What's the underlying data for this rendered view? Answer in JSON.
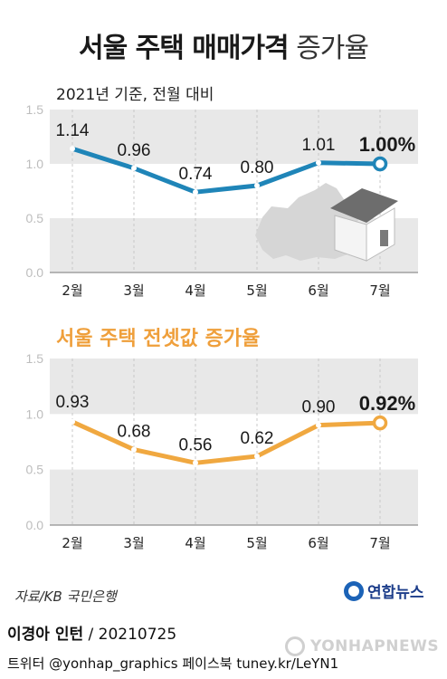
{
  "title": {
    "bold": "서울 주택 매매가격",
    "light": " 증가율"
  },
  "subtitle": "2021년 기준, 전월 대비",
  "chart2_title": "서울 주택 전셋값 증가율",
  "source": "자료/KB 국민은행",
  "logo": "연합뉴스",
  "footer": {
    "author": "이경아 인턴",
    "date": " / 20210725",
    "social": "트위터 @yonhap_graphics  페이스북 tuney.kr/LeYN1"
  },
  "watermark": "YONHAPNEWS",
  "colors": {
    "series1": "#1f85b8",
    "series2": "#f0a840",
    "band": "#e8e8e8"
  },
  "chart_data": [
    {
      "type": "line",
      "title": "서울 주택 매매가격 증가율",
      "subtitle": "2021년 기준, 전월 대비",
      "categories": [
        "2월",
        "3월",
        "4월",
        "5월",
        "6월",
        "7월"
      ],
      "values": [
        1.14,
        0.96,
        0.74,
        0.8,
        1.01,
        1.0
      ],
      "labels": [
        "1.14",
        "0.96",
        "0.74",
        "0.80",
        "1.01",
        "1.00%"
      ],
      "yticks": [
        "0.0",
        "0.5",
        "1.0",
        "1.5"
      ],
      "ylim": [
        0,
        1.5
      ],
      "grid": true
    },
    {
      "type": "line",
      "title": "서울 주택 전셋값 증가율",
      "categories": [
        "2월",
        "3월",
        "4월",
        "5월",
        "6월",
        "7월"
      ],
      "values": [
        0.93,
        0.68,
        0.56,
        0.62,
        0.9,
        0.92
      ],
      "labels": [
        "0.93",
        "0.68",
        "0.56",
        "0.62",
        "0.90",
        "0.92%"
      ],
      "yticks": [
        "0.0",
        "0.5",
        "1.0",
        "1.5"
      ],
      "ylim": [
        0,
        1.5
      ],
      "grid": true
    }
  ]
}
